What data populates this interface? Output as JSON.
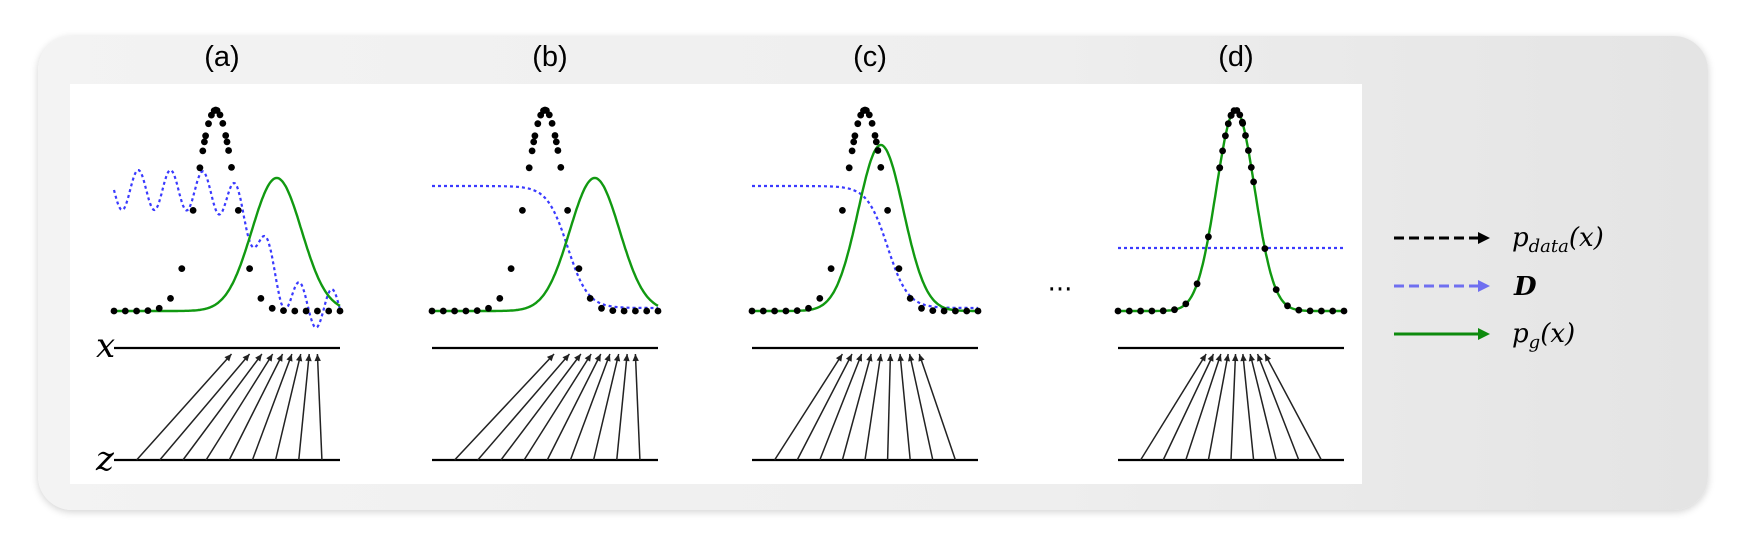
{
  "panels": [
    {
      "label": "(a)"
    },
    {
      "label": "(b)"
    },
    {
      "label": "(c)"
    },
    {
      "label": "(d)"
    }
  ],
  "axis_labels": {
    "x": "x",
    "z": "z"
  },
  "ellipsis": "···",
  "legend": [
    {
      "id": "pdata",
      "main": "p",
      "sub": "data",
      "tail": "(x)",
      "color": "#000000",
      "dash": true
    },
    {
      "id": "D",
      "main": "D",
      "sub": "",
      "tail": "",
      "color": "#6f6ff0",
      "dash": true,
      "bold": true
    },
    {
      "id": "pg",
      "main": "p",
      "sub": "g",
      "tail": "(x)",
      "color": "#0d8a0d",
      "dash": false
    }
  ],
  "colors": {
    "data": "#000000",
    "discriminator": "#3a3aff",
    "generator": "#119911",
    "axis": "#000000"
  }
}
